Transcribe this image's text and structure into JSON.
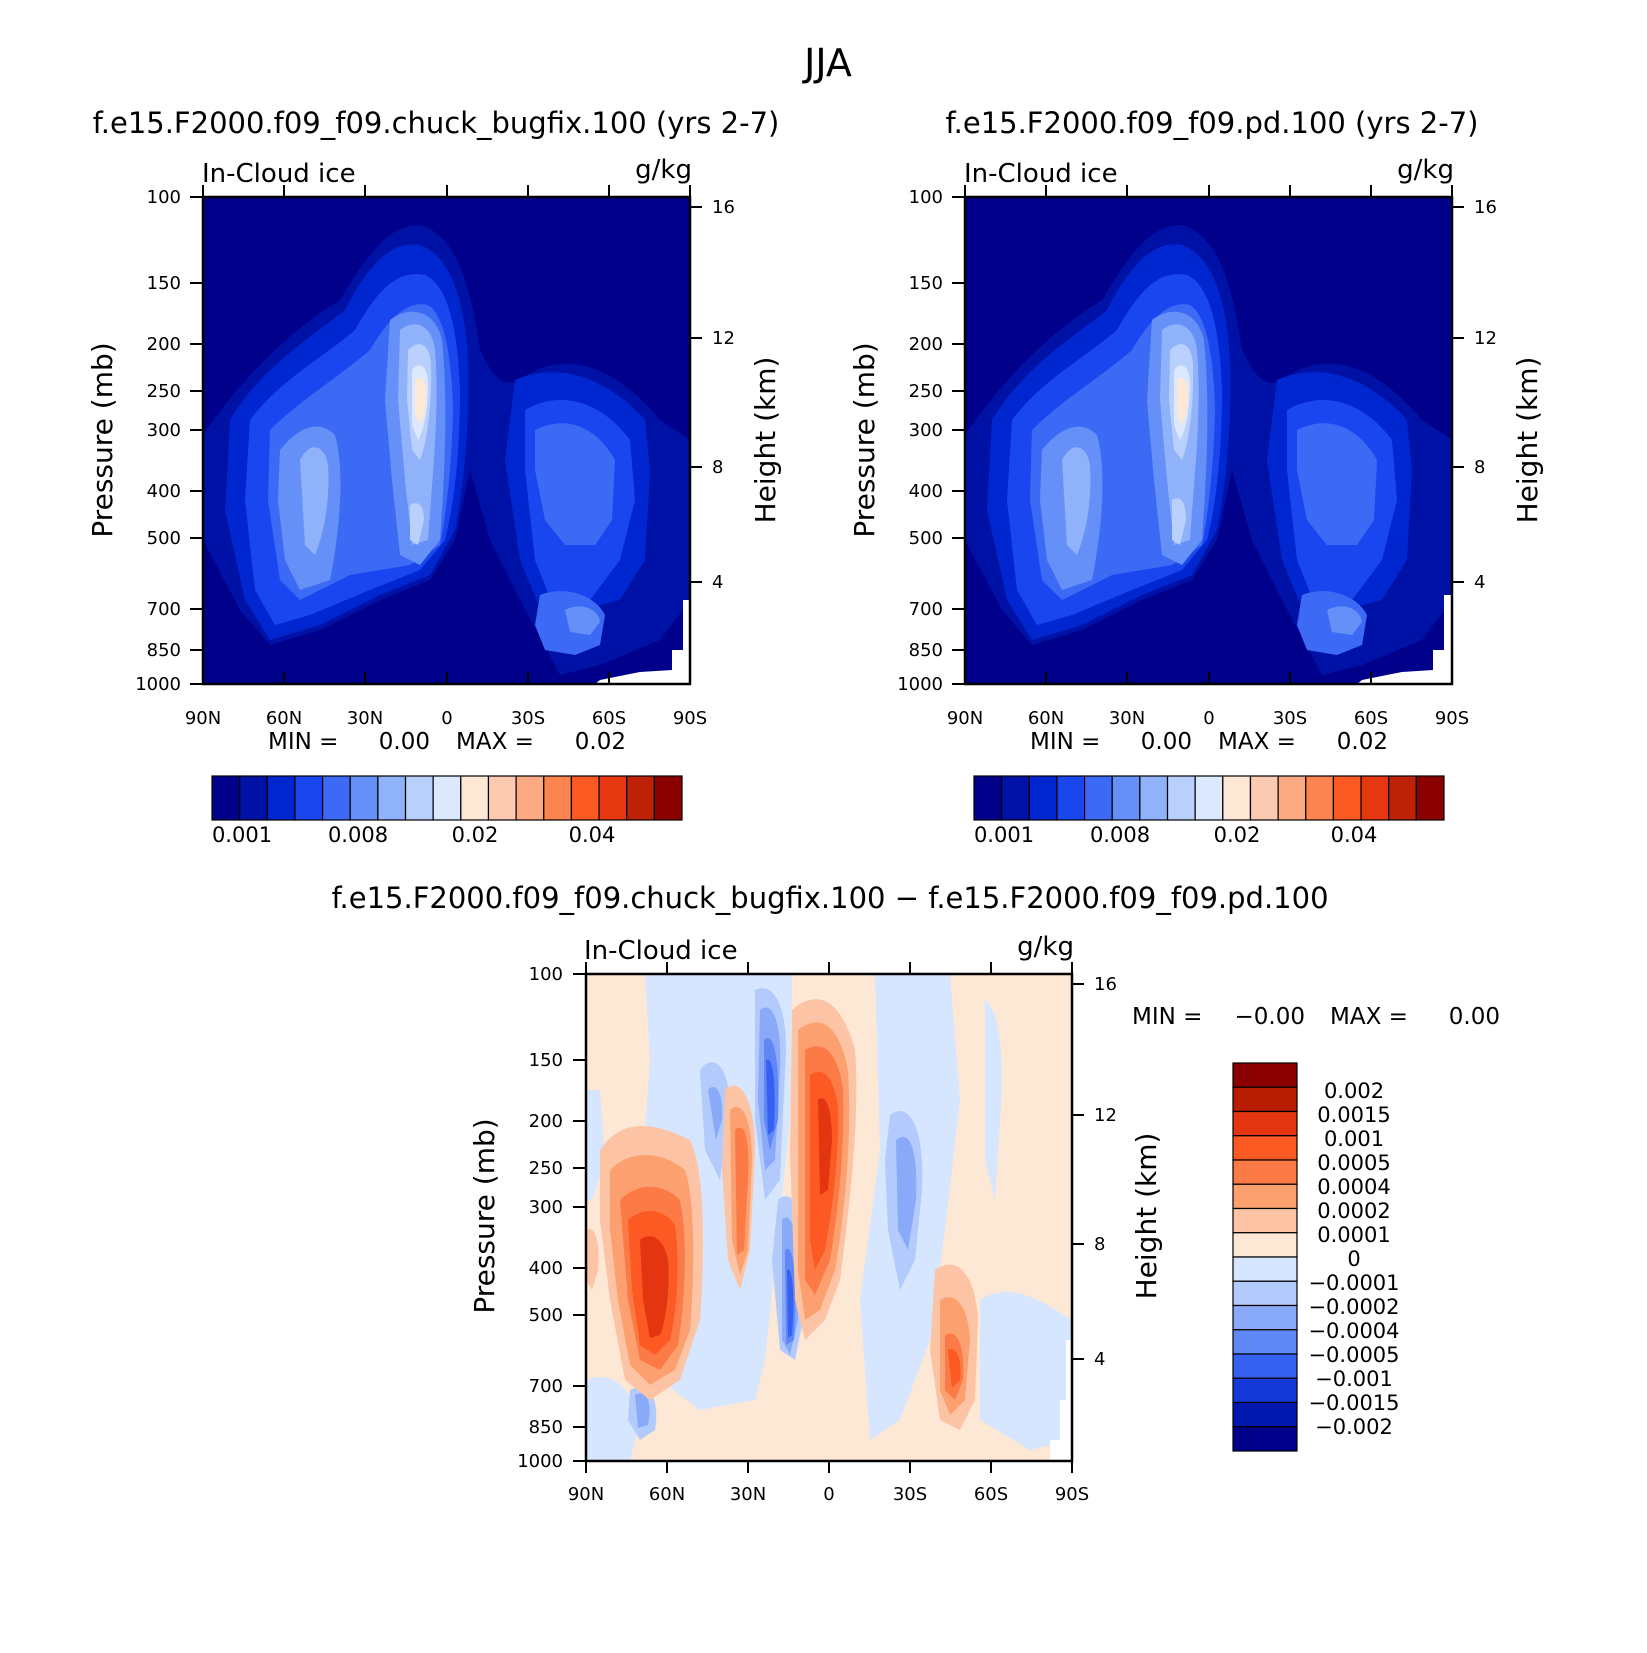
{
  "figure_title": "JJA",
  "chart_data": [
    {
      "type": "heatmap",
      "title": "f.e15.F2000.f09_f09.chuck_bugfix.100 (yrs 2-7)",
      "variable": "In-Cloud ice",
      "units": "g/kg",
      "xlabel": "",
      "ylabel": "Pressure (mb)",
      "ylabel_right": "Height (km)",
      "x_ticks": [
        "90N",
        "60N",
        "30N",
        "0",
        "30S",
        "60S",
        "90S"
      ],
      "y_ticks": [
        "100",
        "150",
        "200",
        "250",
        "300",
        "400",
        "500",
        "700",
        "850",
        "1000"
      ],
      "y_ticks_right": [
        "16",
        "12",
        "8",
        "4"
      ],
      "stats": {
        "min_label": "MIN =",
        "min_value": "0.00",
        "max_label": "MAX =",
        "max_value": "0.02"
      },
      "colorbar_labels": [
        "0.001",
        "0.008",
        "0.02",
        "0.04"
      ],
      "colors": [
        "#00008b",
        "#0011a6",
        "#0026d0",
        "#1a46f0",
        "#3d6af5",
        "#6590f8",
        "#8fb2fb",
        "#b9d0fd",
        "#dce8fe",
        "#fde8d6",
        "#fccab0",
        "#fcaa83",
        "#fc8450",
        "#fc5a22",
        "#e63810",
        "#be2206",
        "#8b0000"
      ]
    },
    {
      "type": "heatmap",
      "title": "f.e15.F2000.f09_f09.pd.100 (yrs 2-7)",
      "variable": "In-Cloud ice",
      "units": "g/kg",
      "xlabel": "",
      "ylabel": "Pressure (mb)",
      "ylabel_right": "Height (km)",
      "x_ticks": [
        "90N",
        "60N",
        "30N",
        "0",
        "30S",
        "60S",
        "90S"
      ],
      "y_ticks": [
        "100",
        "150",
        "200",
        "250",
        "300",
        "400",
        "500",
        "700",
        "850",
        "1000"
      ],
      "y_ticks_right": [
        "16",
        "12",
        "8",
        "4"
      ],
      "stats": {
        "min_label": "MIN =",
        "min_value": "0.00",
        "max_label": "MAX =",
        "max_value": "0.02"
      },
      "colorbar_labels": [
        "0.001",
        "0.008",
        "0.02",
        "0.04"
      ],
      "colors": [
        "#00008b",
        "#0011a6",
        "#0026d0",
        "#1a46f0",
        "#3d6af5",
        "#6590f8",
        "#8fb2fb",
        "#b9d0fd",
        "#dce8fe",
        "#fde8d6",
        "#fccab0",
        "#fcaa83",
        "#fc8450",
        "#fc5a22",
        "#e63810",
        "#be2206",
        "#8b0000"
      ]
    },
    {
      "type": "heatmap",
      "title": "f.e15.F2000.f09_f09.chuck_bugfix.100 − f.e15.F2000.f09_f09.pd.100",
      "variable": "In-Cloud ice",
      "units": "g/kg",
      "xlabel": "",
      "ylabel": "Pressure (mb)",
      "ylabel_right": "Height (km)",
      "x_ticks": [
        "90N",
        "60N",
        "30N",
        "0",
        "30S",
        "60S",
        "90S"
      ],
      "y_ticks": [
        "100",
        "150",
        "200",
        "250",
        "300",
        "400",
        "500",
        "700",
        "850",
        "1000"
      ],
      "y_ticks_right": [
        "16",
        "12",
        "8",
        "4"
      ],
      "stats": {
        "min_label": "MIN =",
        "min_value": "−0.00",
        "max_label": "MAX =",
        "max_value": "0.00"
      },
      "colorbar_labels": [
        "0.002",
        "0.0015",
        "0.001",
        "0.0005",
        "0.0004",
        "0.0002",
        "0.0001",
        "0",
        "−0.0001",
        "−0.0002",
        "−0.0004",
        "−0.0005",
        "−0.001",
        "−0.0015",
        "−0.002"
      ],
      "colors": [
        "#8b0000",
        "#b81d04",
        "#e23510",
        "#fc5a22",
        "#fc7a45",
        "#fca070",
        "#fcc4a4",
        "#fde8d6",
        "#d6e6fe",
        "#b3cbfc",
        "#89a9f9",
        "#5f87f6",
        "#3560f2",
        "#1538d8",
        "#0018b0",
        "#00008b"
      ]
    }
  ]
}
